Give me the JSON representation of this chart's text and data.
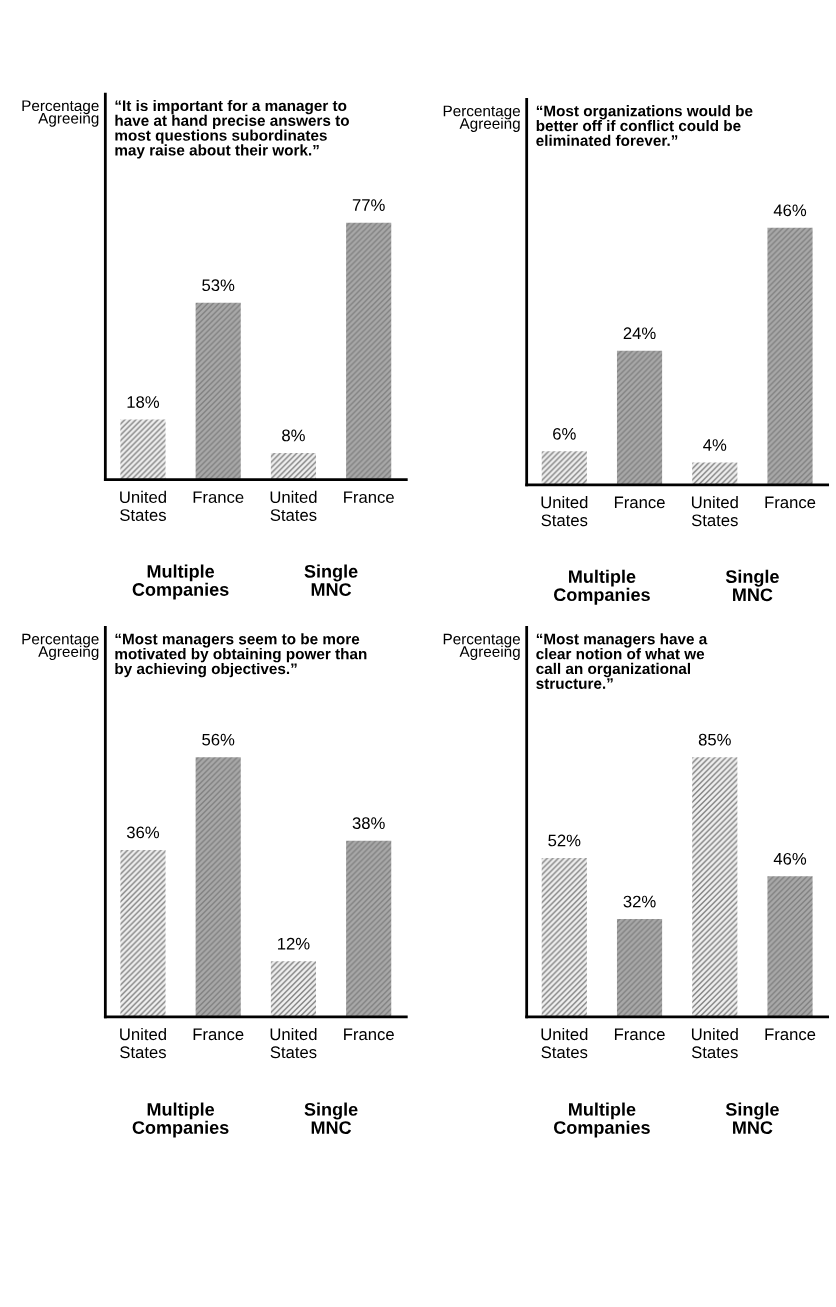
{
  "chart_data": [
    {
      "type": "bar",
      "title": "“It is important for a manager to\nhave at hand precise answers to\nmost questions subordinates\nmay raise about their work.”",
      "ylabel": "Percentage\nAgreeing",
      "categories": [
        "United\nStates",
        "France",
        "United\nStates",
        "France"
      ],
      "values": [
        18,
        53,
        8,
        77
      ],
      "value_labels": [
        "18%",
        "53%",
        "8%",
        "77%"
      ],
      "colors": [
        "#f0f0f0",
        "#a8a8a8",
        "#f0f0f0",
        "#a8a8a8"
      ],
      "tick_labels": "x",
      "annotations": [
        "Multiple\nCompanies",
        "Single\nMNC"
      ]
    },
    {
      "type": "bar",
      "title": "“Most organizations would be\nbetter off if conflict could be\neliminated forever.”",
      "ylabel": "Percentage\nAgreeing",
      "categories": [
        "United\nStates",
        "France",
        "United\nStates",
        "France"
      ],
      "values": [
        6,
        24,
        4,
        46
      ],
      "value_labels": [
        "6%",
        "24%",
        "4%",
        "46%"
      ],
      "colors": [
        "#f0f0f0",
        "#a8a8a8",
        "#f0f0f0",
        "#a8a8a8"
      ],
      "tick_labels": "x",
      "annotations": [
        "Multiple\nCompanies",
        "Single\nMNC"
      ]
    },
    {
      "type": "bar",
      "title": "“Most managers seem to be more\nmotivated by obtaining power than\nby achieving objectives.”",
      "ylabel": "Percentage\nAgreeing",
      "categories": [
        "United\nStates",
        "France",
        "United\nStates",
        "France"
      ],
      "values": [
        36,
        56,
        12,
        38
      ],
      "value_labels": [
        "36%",
        "56%",
        "12%",
        "38%"
      ],
      "colors": [
        "#f0f0f0",
        "#a8a8a8",
        "#f0f0f0",
        "#a8a8a8"
      ],
      "tick_labels": "x",
      "annotations": [
        "Multiple\nCompanies",
        "Single\nMNC"
      ]
    },
    {
      "type": "bar",
      "title": "“Most managers have a\nclear notion of what we\ncall an organizational\nstructure.”",
      "ylabel": "Percentage\nAgreeing",
      "categories": [
        "United\nStates",
        "France",
        "United\nStates",
        "France"
      ],
      "values": [
        52,
        32,
        85,
        46
      ],
      "value_labels": [
        "52%",
        "32%",
        "85%",
        "46%"
      ],
      "colors": [
        "#f0f0f0",
        "#a8a8a8",
        "#f0f0f0",
        "#a8a8a8"
      ],
      "tick_labels": "x",
      "annotations": [
        "Multiple\nCompanies",
        "Single\nMNC"
      ]
    }
  ]
}
